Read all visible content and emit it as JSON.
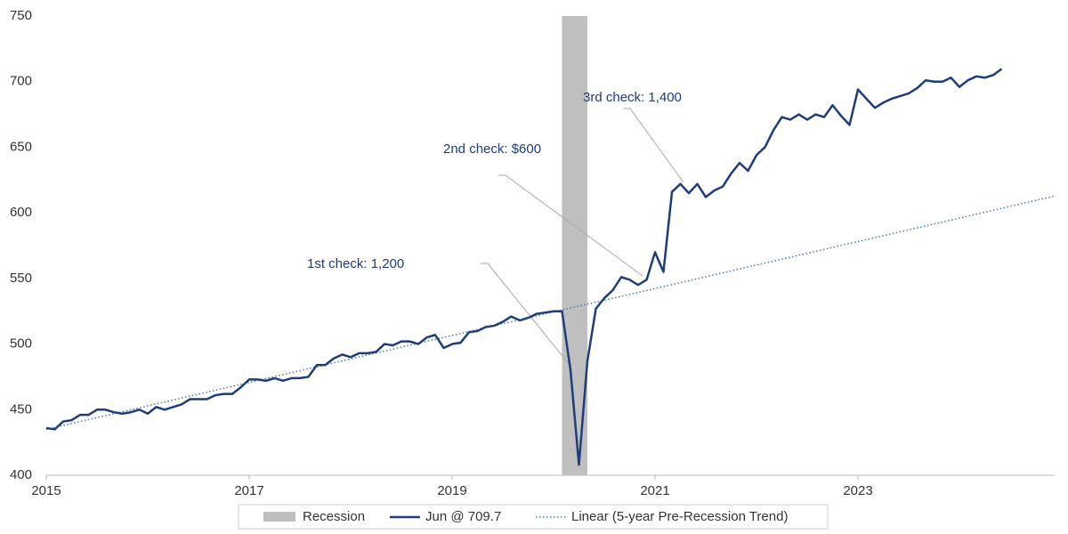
{
  "chart_data": {
    "type": "line",
    "xlim": [
      2015,
      2025
    ],
    "ylim": [
      400,
      750
    ],
    "xticks": [
      2015,
      2017,
      2019,
      2021,
      2023
    ],
    "yticks": [
      400,
      450,
      500,
      550,
      600,
      650,
      700,
      750
    ],
    "grid": false,
    "legend": "bottom",
    "recession": {
      "name": "Recession",
      "start": 2020.083,
      "end": 2020.333,
      "color": "#bfbfbf"
    },
    "series": [
      {
        "name": "Jun @ 709.7",
        "color": "#1f3d7a",
        "style": "solid",
        "x": [
          2015,
          2015.083,
          2015.167,
          2015.25,
          2015.333,
          2015.417,
          2015.5,
          2015.583,
          2015.667,
          2015.75,
          2015.833,
          2015.917,
          2016,
          2016.083,
          2016.167,
          2016.25,
          2016.333,
          2016.417,
          2016.5,
          2016.583,
          2016.667,
          2016.75,
          2016.833,
          2016.917,
          2017,
          2017.083,
          2017.167,
          2017.25,
          2017.333,
          2017.417,
          2017.5,
          2017.583,
          2017.667,
          2017.75,
          2017.833,
          2017.917,
          2018,
          2018.083,
          2018.167,
          2018.25,
          2018.333,
          2018.417,
          2018.5,
          2018.583,
          2018.667,
          2018.75,
          2018.833,
          2018.917,
          2019,
          2019.083,
          2019.167,
          2019.25,
          2019.333,
          2019.417,
          2019.5,
          2019.583,
          2019.667,
          2019.75,
          2019.833,
          2019.917,
          2020,
          2020.083,
          2020.167,
          2020.25,
          2020.333,
          2020.417,
          2020.5,
          2020.583,
          2020.667,
          2020.75,
          2020.833,
          2020.917,
          2021,
          2021.083,
          2021.167,
          2021.25,
          2021.333,
          2021.417,
          2021.5,
          2021.583,
          2021.667,
          2021.75,
          2021.833,
          2021.917,
          2022,
          2022.083,
          2022.167,
          2022.25,
          2022.333,
          2022.417,
          2022.5,
          2022.583,
          2022.667,
          2022.75,
          2022.833,
          2022.917,
          2023,
          2023.083,
          2023.167,
          2023.25,
          2023.333,
          2023.417,
          2023.5,
          2023.583,
          2023.667,
          2023.75,
          2023.833,
          2023.917,
          2024,
          2024.083,
          2024.167,
          2024.25,
          2024.333,
          2024.417
        ],
        "values": [
          436,
          435,
          441,
          442,
          446,
          446,
          450,
          450,
          448,
          447,
          448,
          450,
          447,
          452,
          450,
          452,
          454,
          458,
          458,
          458,
          461,
          462,
          462,
          467,
          473,
          473,
          472,
          474,
          472,
          474,
          474,
          475,
          484,
          484,
          489,
          492,
          490,
          493,
          493,
          494,
          500,
          499,
          502,
          502,
          500,
          505,
          507,
          497,
          500,
          501,
          509,
          510,
          513,
          514,
          517,
          521,
          518,
          520,
          523,
          524,
          525,
          525,
          480,
          408,
          487,
          527,
          535,
          541,
          551,
          549,
          545,
          549,
          570,
          555,
          616,
          622,
          615,
          622,
          612,
          617,
          620,
          630,
          638,
          632,
          644,
          650,
          663,
          673,
          671,
          675,
          671,
          675,
          673,
          682,
          674,
          667,
          694,
          687,
          680,
          684,
          687,
          689,
          691,
          695,
          701,
          700,
          700,
          703,
          696,
          701,
          704,
          703,
          705,
          709.7
        ]
      },
      {
        "name": "Linear (5-year Pre-Recession Trend)",
        "color": "#4a78b5",
        "style": "dotted",
        "x": [
          2015,
          2024.95
        ],
        "values": [
          435,
          613
        ]
      }
    ],
    "annotations": [
      {
        "text": "1st check: 1,200"
      },
      {
        "text": "2nd check: $600"
      },
      {
        "text": "3rd check: 1,400"
      }
    ]
  }
}
